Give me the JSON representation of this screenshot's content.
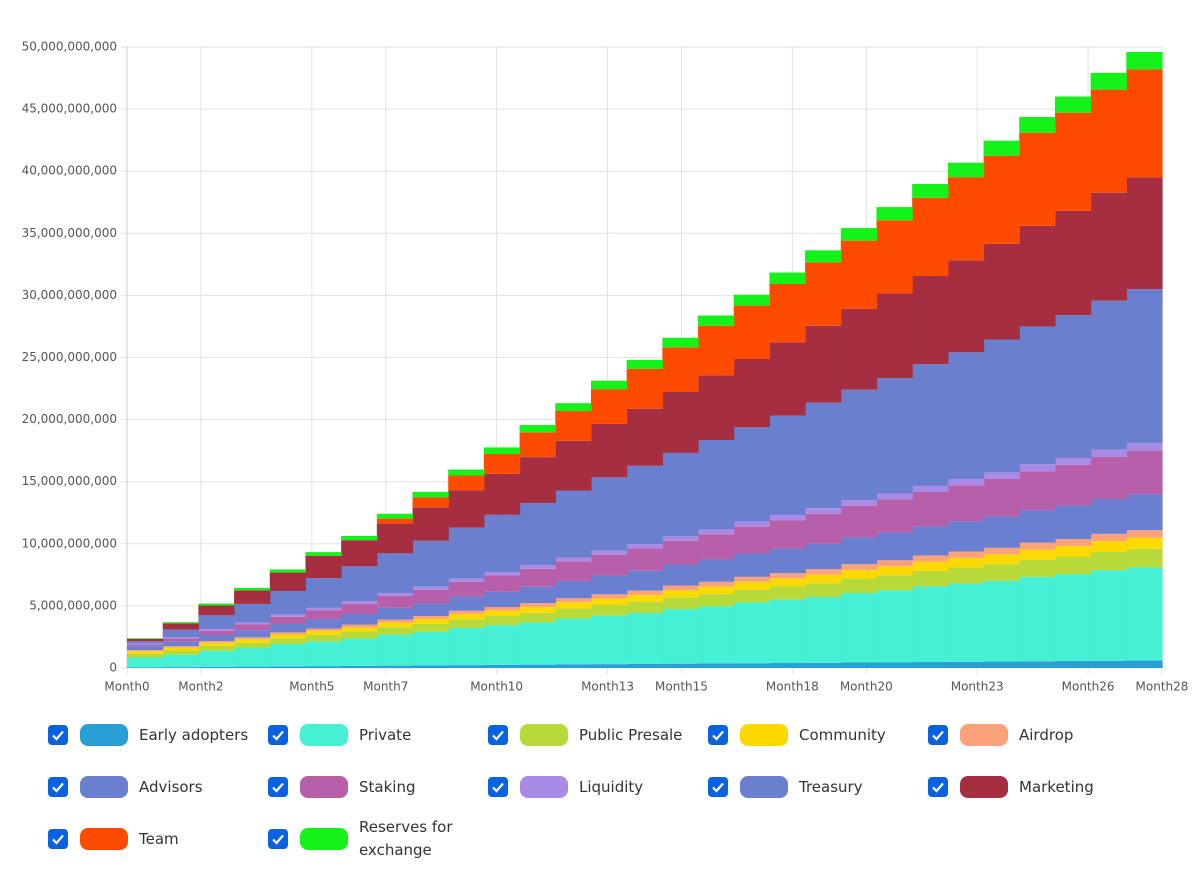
{
  "chart_data": {
    "type": "stepped-stacked-area",
    "categories": [
      "Month0",
      null,
      "Month2",
      null,
      null,
      "Month5",
      null,
      "Month7",
      null,
      null,
      "Month10",
      null,
      null,
      "Month13",
      null,
      "Month15",
      null,
      null,
      "Month18",
      null,
      "Month20",
      null,
      null,
      "Month23",
      null,
      null,
      "Month26",
      null,
      "Month28"
    ],
    "ylim": [
      0,
      50000000000
    ],
    "yticks": [
      0,
      {
        "value": 5000000000,
        "label": "5,000,000,000"
      },
      {
        "value": 10000000000,
        "label": "10,000,000,000"
      },
      {
        "value": 15000000000,
        "label": "15,000,000,000"
      },
      {
        "value": 20000000000,
        "label": "20,000,000,000"
      },
      {
        "value": 25000000000,
        "label": "25,000,000,000"
      },
      {
        "value": 30000000000,
        "label": "30,000,000,000"
      },
      {
        "value": 35000000000,
        "label": "35,000,000,000"
      },
      {
        "value": 40000000000,
        "label": "40,000,000,000"
      },
      {
        "value": 45000000000,
        "label": "45,000,000,000"
      },
      {
        "value": 50000000000,
        "label": "50,000,000,000"
      }
    ],
    "grid": true,
    "series": [
      {
        "name": "Early adopters",
        "color": "#2a9fd6",
        "values": [
          50000000,
          70000000,
          90000000,
          110000000,
          130000000,
          150000000,
          170000000,
          190000000,
          210000000,
          230000000,
          250000000,
          270000000,
          290000000,
          310000000,
          330000000,
          350000000,
          360000000,
          380000000,
          400000000,
          420000000,
          440000000,
          460000000,
          480000000,
          500000000,
          520000000,
          540000000,
          560000000,
          580000000,
          600000000
        ]
      },
      {
        "name": "Private",
        "color": "#45f0d5",
        "values": [
          800000000,
          1000000000,
          1300000000,
          1500000000,
          1800000000,
          2000000000,
          2200000000,
          2500000000,
          2700000000,
          3000000000,
          3200000000,
          3400000000,
          3700000000,
          3900000000,
          4100000000,
          4400000000,
          4600000000,
          4900000000,
          5100000000,
          5300000000,
          5600000000,
          5800000000,
          6100000000,
          6300000000,
          6500000000,
          6800000000,
          7000000000,
          7300000000,
          7500000000
        ]
      },
      {
        "name": "Public Presale",
        "color": "#b8d93a",
        "values": [
          300000000,
          340000000,
          390000000,
          430000000,
          470000000,
          510000000,
          560000000,
          600000000,
          640000000,
          690000000,
          730000000,
          770000000,
          810000000,
          860000000,
          900000000,
          940000000,
          990000000,
          1030000000,
          1070000000,
          1110000000,
          1160000000,
          1200000000,
          1240000000,
          1290000000,
          1330000000,
          1370000000,
          1410000000,
          1460000000,
          1500000000
        ]
      },
      {
        "name": "Community",
        "color": "#fcd900",
        "values": [
          200000000,
          230000000,
          250000000,
          280000000,
          300000000,
          330000000,
          350000000,
          380000000,
          400000000,
          430000000,
          450000000,
          480000000,
          500000000,
          530000000,
          550000000,
          580000000,
          600000000,
          630000000,
          650000000,
          680000000,
          700000000,
          730000000,
          750000000,
          780000000,
          800000000,
          830000000,
          850000000,
          880000000,
          900000000
        ]
      },
      {
        "name": "Airdrop",
        "color": "#fca27a",
        "values": [
          100000000,
          120000000,
          140000000,
          150000000,
          170000000,
          190000000,
          210000000,
          230000000,
          240000000,
          260000000,
          280000000,
          300000000,
          310000000,
          330000000,
          350000000,
          370000000,
          390000000,
          400000000,
          420000000,
          440000000,
          460000000,
          480000000,
          490000000,
          510000000,
          530000000,
          550000000,
          560000000,
          580000000,
          600000000
        ]
      },
      {
        "name": "Advisors",
        "color": "#6b7fd0",
        "values": [
          300000000,
          390000000,
          490000000,
          580000000,
          670000000,
          760000000,
          860000000,
          950000000,
          1040000000,
          1140000000,
          1230000000,
          1320000000,
          1410000000,
          1510000000,
          1600000000,
          1690000000,
          1790000000,
          1880000000,
          1970000000,
          2060000000,
          2160000000,
          2250000000,
          2340000000,
          2440000000,
          2530000000,
          2620000000,
          2710000000,
          2810000000,
          2900000000
        ]
      },
      {
        "name": "Staking",
        "color": "#b75fa8",
        "values": [
          100000000,
          220000000,
          340000000,
          460000000,
          590000000,
          710000000,
          830000000,
          950000000,
          1070000000,
          1190000000,
          1310000000,
          1440000000,
          1560000000,
          1680000000,
          1800000000,
          1920000000,
          2040000000,
          2160000000,
          2290000000,
          2410000000,
          2530000000,
          2650000000,
          2770000000,
          2890000000,
          3010000000,
          3140000000,
          3260000000,
          3380000000,
          3500000000
        ]
      },
      {
        "name": "Liquidity",
        "color": "#a98be6",
        "values": [
          100000000,
          120000000,
          140000000,
          150000000,
          170000000,
          190000000,
          210000000,
          230000000,
          240000000,
          260000000,
          280000000,
          300000000,
          310000000,
          330000000,
          350000000,
          370000000,
          390000000,
          400000000,
          420000000,
          440000000,
          460000000,
          480000000,
          490000000,
          510000000,
          530000000,
          550000000,
          560000000,
          580000000,
          600000000
        ]
      },
      {
        "name": "Treasury",
        "color": "#6a80cf",
        "values": [
          200000000,
          600000000,
          1100000000,
          1500000000,
          1900000000,
          2400000000,
          2800000000,
          3200000000,
          3700000000,
          4100000000,
          4600000000,
          5000000000,
          5400000000,
          5900000000,
          6300000000,
          6700000000,
          7200000000,
          7600000000,
          8000000000,
          8500000000,
          8900000000,
          9300000000,
          9800000000,
          10200000000,
          10700000000,
          11100000000,
          11500000000,
          12000000000,
          12400000000
        ]
      },
      {
        "name": "Marketing",
        "color": "#a52f41",
        "values": [
          200000000,
          500000000,
          800000000,
          1100000000,
          1500000000,
          1800000000,
          2100000000,
          2400000000,
          2700000000,
          3000000000,
          3300000000,
          3700000000,
          4000000000,
          4300000000,
          4600000000,
          4900000000,
          5200000000,
          5500000000,
          5900000000,
          6200000000,
          6500000000,
          6800000000,
          7100000000,
          7400000000,
          7700000000,
          8100000000,
          8400000000,
          8700000000,
          9000000000
        ]
      },
      {
        "name": "Team",
        "color": "#ff4b00",
        "values": [
          0,
          0,
          0,
          0,
          0,
          0,
          0,
          400000000,
          800000000,
          1200000000,
          1600000000,
          2000000000,
          2400000000,
          2800000000,
          3200000000,
          3600000000,
          4000000000,
          4300000000,
          4700000000,
          5100000000,
          5500000000,
          5900000000,
          6300000000,
          6700000000,
          7100000000,
          7500000000,
          7900000000,
          8300000000,
          8700000000
        ]
      },
      {
        "name": "Reserves for exchange",
        "color": "#14f21a",
        "values": [
          50000000,
          100000000,
          150000000,
          190000000,
          240000000,
          290000000,
          340000000,
          390000000,
          440000000,
          480000000,
          530000000,
          580000000,
          630000000,
          680000000,
          730000000,
          770000000,
          820000000,
          870000000,
          920000000,
          970000000,
          1010000000,
          1060000000,
          1110000000,
          1160000000,
          1210000000,
          1260000000,
          1300000000,
          1350000000,
          1400000000
        ]
      }
    ]
  }
}
